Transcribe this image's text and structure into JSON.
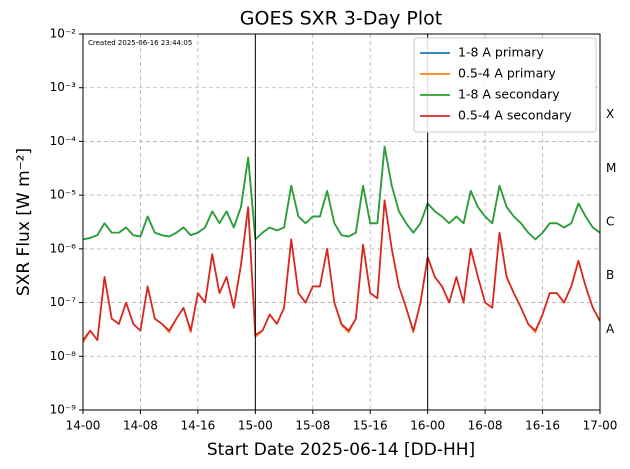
{
  "chart_data": {
    "type": "line",
    "title": "GOES SXR 3-Day Plot",
    "xlabel": "Start Date 2025-06-14 [DD-HH]",
    "ylabel": "SXR Flux [W m⁻²]",
    "annotation": "Created 2025-06-16 23:44:05",
    "log_y": true,
    "grid": true,
    "legend": "upper right",
    "xlim": [
      0,
      72
    ],
    "xticks": [
      {
        "value": 0,
        "label": "14-00"
      },
      {
        "value": 8,
        "label": "14-08"
      },
      {
        "value": 16,
        "label": "14-16"
      },
      {
        "value": 24,
        "label": "15-00"
      },
      {
        "value": 32,
        "label": "15-08"
      },
      {
        "value": 40,
        "label": "15-16"
      },
      {
        "value": 48,
        "label": "16-00"
      },
      {
        "value": 56,
        "label": "16-08"
      },
      {
        "value": 64,
        "label": "16-16"
      },
      {
        "value": 72,
        "label": "17-00"
      }
    ],
    "ylim": [
      1e-09,
      0.01
    ],
    "yticks": [
      {
        "value": 1e-09,
        "label": "10⁻⁹"
      },
      {
        "value": 1e-08,
        "label": "10⁻⁸"
      },
      {
        "value": 1e-07,
        "label": "10⁻⁷"
      },
      {
        "value": 1e-06,
        "label": "10⁻⁶"
      },
      {
        "value": 1e-05,
        "label": "10⁻⁵"
      },
      {
        "value": 0.0001,
        "label": "10⁻⁴"
      },
      {
        "value": 0.001,
        "label": "10⁻³"
      },
      {
        "value": 0.01,
        "label": "10⁻²"
      }
    ],
    "vlines": [
      24,
      48
    ],
    "flare_classes": [
      {
        "value": 1e-08,
        "label": "A"
      },
      {
        "value": 1e-07,
        "label": "B"
      },
      {
        "value": 1e-06,
        "label": "C"
      },
      {
        "value": 1e-05,
        "label": "M"
      },
      {
        "value": 0.0001,
        "label": "X"
      }
    ],
    "x": [
      0,
      1,
      2,
      3,
      4,
      5,
      6,
      7,
      8,
      9,
      10,
      11,
      12,
      13,
      14,
      15,
      16,
      17,
      18,
      19,
      20,
      21,
      22,
      23,
      24,
      25,
      26,
      27,
      28,
      29,
      30,
      31,
      32,
      33,
      34,
      35,
      36,
      37,
      38,
      39,
      40,
      41,
      42,
      43,
      44,
      45,
      46,
      47,
      48,
      49,
      50,
      51,
      52,
      53,
      54,
      55,
      56,
      57,
      58,
      59,
      60,
      61,
      62,
      63,
      64,
      65,
      66,
      67,
      68,
      69,
      70,
      71,
      72
    ],
    "series": [
      {
        "name": "1-8 A primary",
        "color": "#1f77b4",
        "values": [
          1.5e-06,
          1.6e-06,
          1.8e-06,
          3e-06,
          2e-06,
          2e-06,
          2.5e-06,
          1.8e-06,
          1.7e-06,
          4e-06,
          2e-06,
          1.8e-06,
          1.7e-06,
          2e-06,
          2.5e-06,
          1.8e-06,
          2e-06,
          2.5e-06,
          5e-06,
          3e-06,
          5e-06,
          2.5e-06,
          6e-06,
          5e-05,
          1.5e-06,
          2e-06,
          2.5e-06,
          2.2e-06,
          2.5e-06,
          1.5e-05,
          4e-06,
          3e-06,
          4e-06,
          4e-06,
          1.2e-05,
          3e-06,
          1.8e-06,
          1.7e-06,
          2e-06,
          1.5e-05,
          3e-06,
          3e-06,
          8e-05,
          1.5e-05,
          5e-06,
          3e-06,
          2e-06,
          3e-06,
          7e-06,
          5e-06,
          4e-06,
          3e-06,
          4e-06,
          3e-06,
          1.2e-05,
          6e-06,
          4e-06,
          3e-06,
          1.5e-05,
          6e-06,
          4e-06,
          3e-06,
          2e-06,
          1.5e-06,
          2e-06,
          3e-06,
          3e-06,
          2.5e-06,
          3e-06,
          7e-06,
          4e-06,
          2.5e-06,
          2e-06
        ]
      },
      {
        "name": "0.5-4 A primary",
        "color": "#ff7f0e",
        "values": [
          1.8e-08,
          3e-08,
          2e-08,
          3e-07,
          5e-08,
          4e-08,
          1e-07,
          4e-08,
          3e-08,
          2e-07,
          5e-08,
          4e-08,
          2.8e-08,
          5e-08,
          8e-08,
          2.8e-08,
          1.5e-07,
          1e-07,
          8e-07,
          1.5e-07,
          3e-07,
          8e-08,
          5e-07,
          6e-06,
          2.3e-08,
          3e-08,
          6e-08,
          4e-08,
          8e-08,
          1.5e-06,
          1.5e-07,
          1e-07,
          2e-07,
          2e-07,
          1e-06,
          1e-07,
          3.8e-08,
          2.8e-08,
          5e-08,
          1.2e-06,
          1.5e-07,
          1.2e-07,
          8e-06,
          1e-06,
          2e-07,
          8e-08,
          2.8e-08,
          1e-07,
          7e-07,
          3e-07,
          2e-07,
          1e-07,
          3e-07,
          1e-07,
          1e-06,
          3e-07,
          1e-07,
          8e-08,
          2e-06,
          3e-07,
          1.5e-07,
          8e-08,
          4e-08,
          2.8e-08,
          6e-08,
          1.5e-07,
          1.5e-07,
          1e-07,
          2e-07,
          6e-07,
          2e-07,
          8e-08,
          4.5e-08
        ]
      },
      {
        "name": "1-8 A secondary",
        "color": "#2ca02c",
        "values": [
          1.5e-06,
          1.6e-06,
          1.8e-06,
          3e-06,
          2e-06,
          2e-06,
          2.5e-06,
          1.8e-06,
          1.7e-06,
          4e-06,
          2e-06,
          1.8e-06,
          1.7e-06,
          2e-06,
          2.5e-06,
          1.8e-06,
          2e-06,
          2.5e-06,
          5e-06,
          3e-06,
          5e-06,
          2.5e-06,
          6e-06,
          5e-05,
          1.5e-06,
          2e-06,
          2.5e-06,
          2.2e-06,
          2.5e-06,
          1.5e-05,
          4e-06,
          3e-06,
          4e-06,
          4e-06,
          1.2e-05,
          3e-06,
          1.8e-06,
          1.7e-06,
          2e-06,
          1.5e-05,
          3e-06,
          3e-06,
          8e-05,
          1.5e-05,
          5e-06,
          3e-06,
          2e-06,
          3e-06,
          7e-06,
          5e-06,
          4e-06,
          3e-06,
          4e-06,
          3e-06,
          1.2e-05,
          6e-06,
          4e-06,
          3e-06,
          1.5e-05,
          6e-06,
          4e-06,
          3e-06,
          2e-06,
          1.5e-06,
          2e-06,
          3e-06,
          3e-06,
          2.5e-06,
          3e-06,
          7e-06,
          4e-06,
          2.5e-06,
          2e-06
        ]
      },
      {
        "name": "0.5-4 A secondary",
        "color": "#d62728",
        "values": [
          2e-08,
          3e-08,
          2e-08,
          3e-07,
          5e-08,
          4e-08,
          1e-07,
          4e-08,
          3e-08,
          2e-07,
          5e-08,
          4e-08,
          3e-08,
          5e-08,
          8e-08,
          3e-08,
          1.5e-07,
          1e-07,
          8e-07,
          1.5e-07,
          3e-07,
          8e-08,
          5e-07,
          6e-06,
          2.5e-08,
          3e-08,
          6e-08,
          4e-08,
          8e-08,
          1.5e-06,
          1.5e-07,
          1e-07,
          2e-07,
          2e-07,
          1e-06,
          1e-07,
          4e-08,
          3e-08,
          5e-08,
          1.2e-06,
          1.5e-07,
          1.2e-07,
          8e-06,
          1e-06,
          2e-07,
          8e-08,
          3e-08,
          1e-07,
          7e-07,
          3e-07,
          2e-07,
          1e-07,
          3e-07,
          1e-07,
          1e-06,
          3e-07,
          1e-07,
          8e-08,
          2e-06,
          3e-07,
          1.5e-07,
          8e-08,
          4e-08,
          3e-08,
          6e-08,
          1.5e-07,
          1.5e-07,
          1e-07,
          2e-07,
          6e-07,
          2e-07,
          8e-08,
          4.5e-08
        ]
      }
    ]
  }
}
